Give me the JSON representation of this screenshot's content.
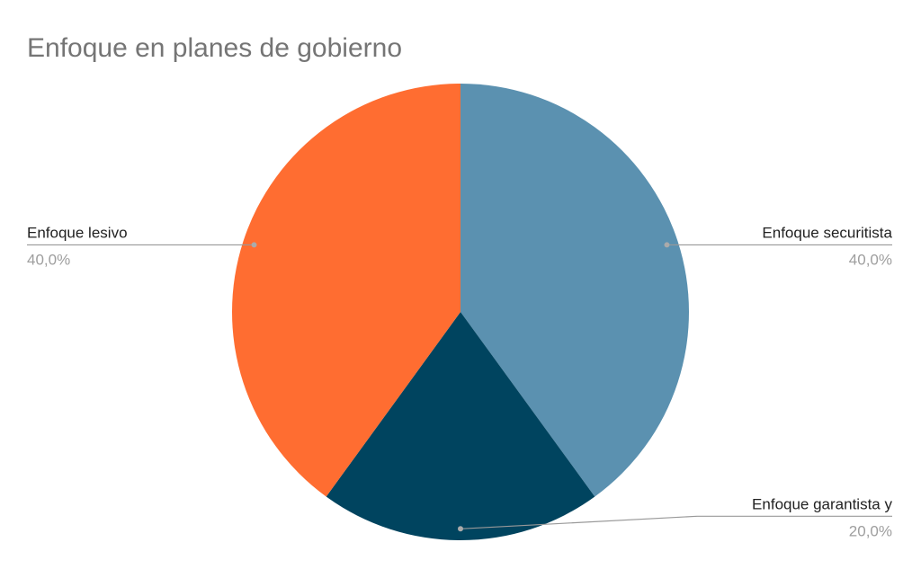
{
  "chart_data": {
    "type": "pie",
    "title": "Enfoque en planes de gobierno",
    "categories": [
      "Enfoque securitista",
      "Enfoque garantista y",
      "Enfoque lesivo"
    ],
    "values": [
      40,
      20,
      40
    ],
    "value_labels": [
      "40,0%",
      "20,0%",
      "40,0%"
    ],
    "colors": [
      "#5b91b0",
      "#00445f",
      "#ff6d31"
    ]
  }
}
